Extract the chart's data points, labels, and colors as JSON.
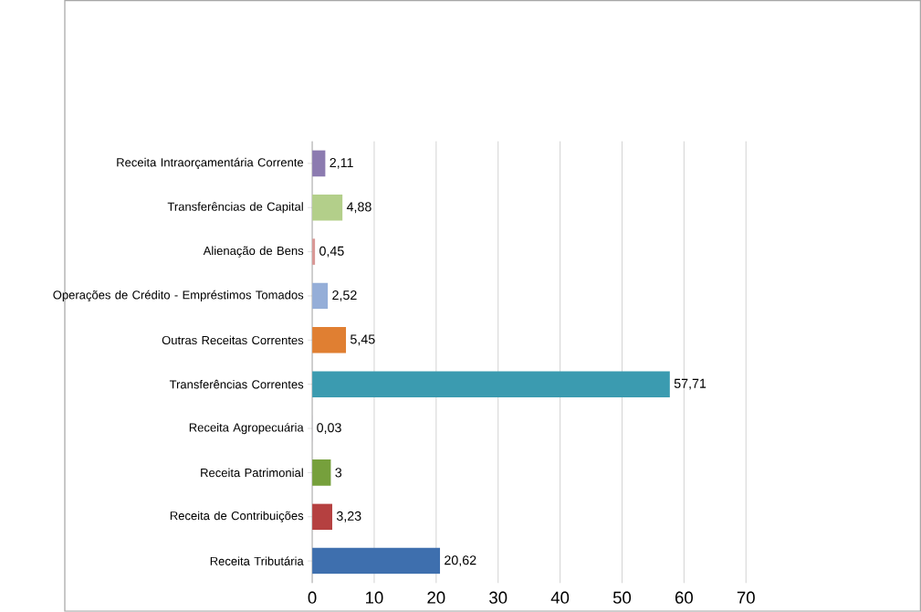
{
  "chart_data": {
    "type": "bar",
    "orientation": "horizontal",
    "categories": [
      "Receita Intraorçamentária Corrente",
      "Transferências de Capital",
      "Alienação de Bens",
      "Operações de Crédito - Empréstimos Tomados",
      "Outras Receitas Correntes",
      "Transferências Correntes",
      "Receita Agropecuária",
      "Receita Patrimonial",
      "Receita de Contribuições",
      "Receita Tributária"
    ],
    "values": [
      2.11,
      4.88,
      0.45,
      2.52,
      5.45,
      57.71,
      0.03,
      3,
      3.23,
      20.62
    ],
    "value_labels": [
      "2,11",
      "4,88",
      "0,45",
      "2,52",
      "5,45",
      "57,71",
      "0,03",
      "3",
      "3,23",
      "20,62"
    ],
    "colors": [
      "#8c7bb0",
      "#b3cf8a",
      "#d99795",
      "#95aed8",
      "#e07f32",
      "#3b9bb0",
      "#8064a2",
      "#76a03c",
      "#b54040",
      "#3e6fae"
    ],
    "xlim": [
      0,
      70
    ],
    "xticks": [
      0,
      10,
      20,
      30,
      40,
      50,
      60,
      70
    ],
    "grid": "x"
  }
}
